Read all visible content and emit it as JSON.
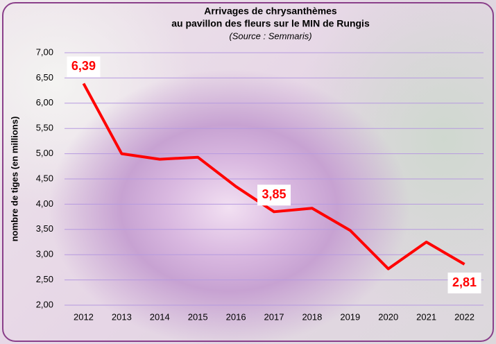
{
  "chart_data": {
    "type": "line",
    "title": "Arrivages de chrysanthèmes",
    "subtitle": "au pavillon des fleurs sur le MIN de Rungis",
    "source": "(Source : Semmaris)",
    "y_label": "nombre de tiges (en millions)",
    "categories": [
      "2012",
      "2013",
      "2014",
      "2015",
      "2016",
      "2017",
      "2018",
      "2019",
      "2020",
      "2021",
      "2022"
    ],
    "values": [
      6.39,
      5.0,
      4.89,
      4.93,
      4.35,
      3.85,
      3.92,
      3.48,
      2.72,
      3.25,
      2.81
    ],
    "value_labels": [
      "6,39",
      null,
      null,
      null,
      null,
      "3,85",
      null,
      null,
      null,
      null,
      "2,81"
    ],
    "color": "#ff0000",
    "ylim": [
      2,
      7
    ],
    "yticks": [
      {
        "value": 2,
        "label": "2,00"
      },
      {
        "value": 2.5,
        "label": "2,50"
      },
      {
        "value": 3,
        "label": "3,00"
      },
      {
        "value": 3.5,
        "label": "3,50"
      },
      {
        "value": 4,
        "label": "4,00"
      },
      {
        "value": 4.5,
        "label": "4,50"
      },
      {
        "value": 5,
        "label": "5,00"
      },
      {
        "value": 5.5,
        "label": "5,50"
      },
      {
        "value": 6,
        "label": "6,00"
      },
      {
        "value": 6.5,
        "label": "6,50"
      },
      {
        "value": 7,
        "label": "7,00"
      }
    ],
    "grid": true
  }
}
